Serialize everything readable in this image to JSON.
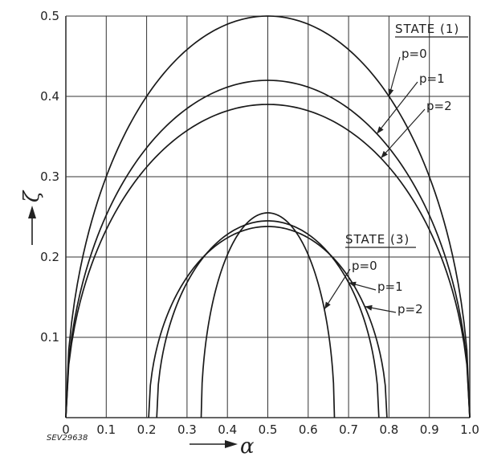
{
  "chart_data": {
    "type": "line",
    "xlabel": "α",
    "ylabel": "ζ",
    "xlim": [
      0,
      1.0
    ],
    "ylim": [
      0,
      0.5
    ],
    "xticks": [
      "0",
      "0.1",
      "0.2",
      "0.3",
      "0.4",
      "0.5",
      "0.6",
      "0.7",
      "0.8",
      "0.9",
      "1.0"
    ],
    "yticks": [
      "0.1",
      "0.2",
      "0.3",
      "0.4",
      "0.5"
    ],
    "grid": true,
    "stamp": "SEV29638",
    "groups": [
      {
        "label": "STATE (1)",
        "series": [
          {
            "name": "p=0",
            "x_range": [
              0,
              1.0
            ],
            "peak": 0.5
          },
          {
            "name": "p=1",
            "x_range": [
              0,
              1.0
            ],
            "peak": 0.42
          },
          {
            "name": "p=2",
            "x_range": [
              0,
              1.0
            ],
            "peak": 0.39
          }
        ]
      },
      {
        "label": "STATE (3)",
        "series": [
          {
            "name": "p=0",
            "x_range": [
              0.335,
              0.665
            ],
            "peak": 0.255
          },
          {
            "name": "p=1",
            "x_range": [
              0.225,
              0.775
            ],
            "peak": 0.245
          },
          {
            "name": "p=2",
            "x_range": [
              0.205,
              0.795
            ],
            "peak": 0.238
          }
        ]
      }
    ]
  }
}
